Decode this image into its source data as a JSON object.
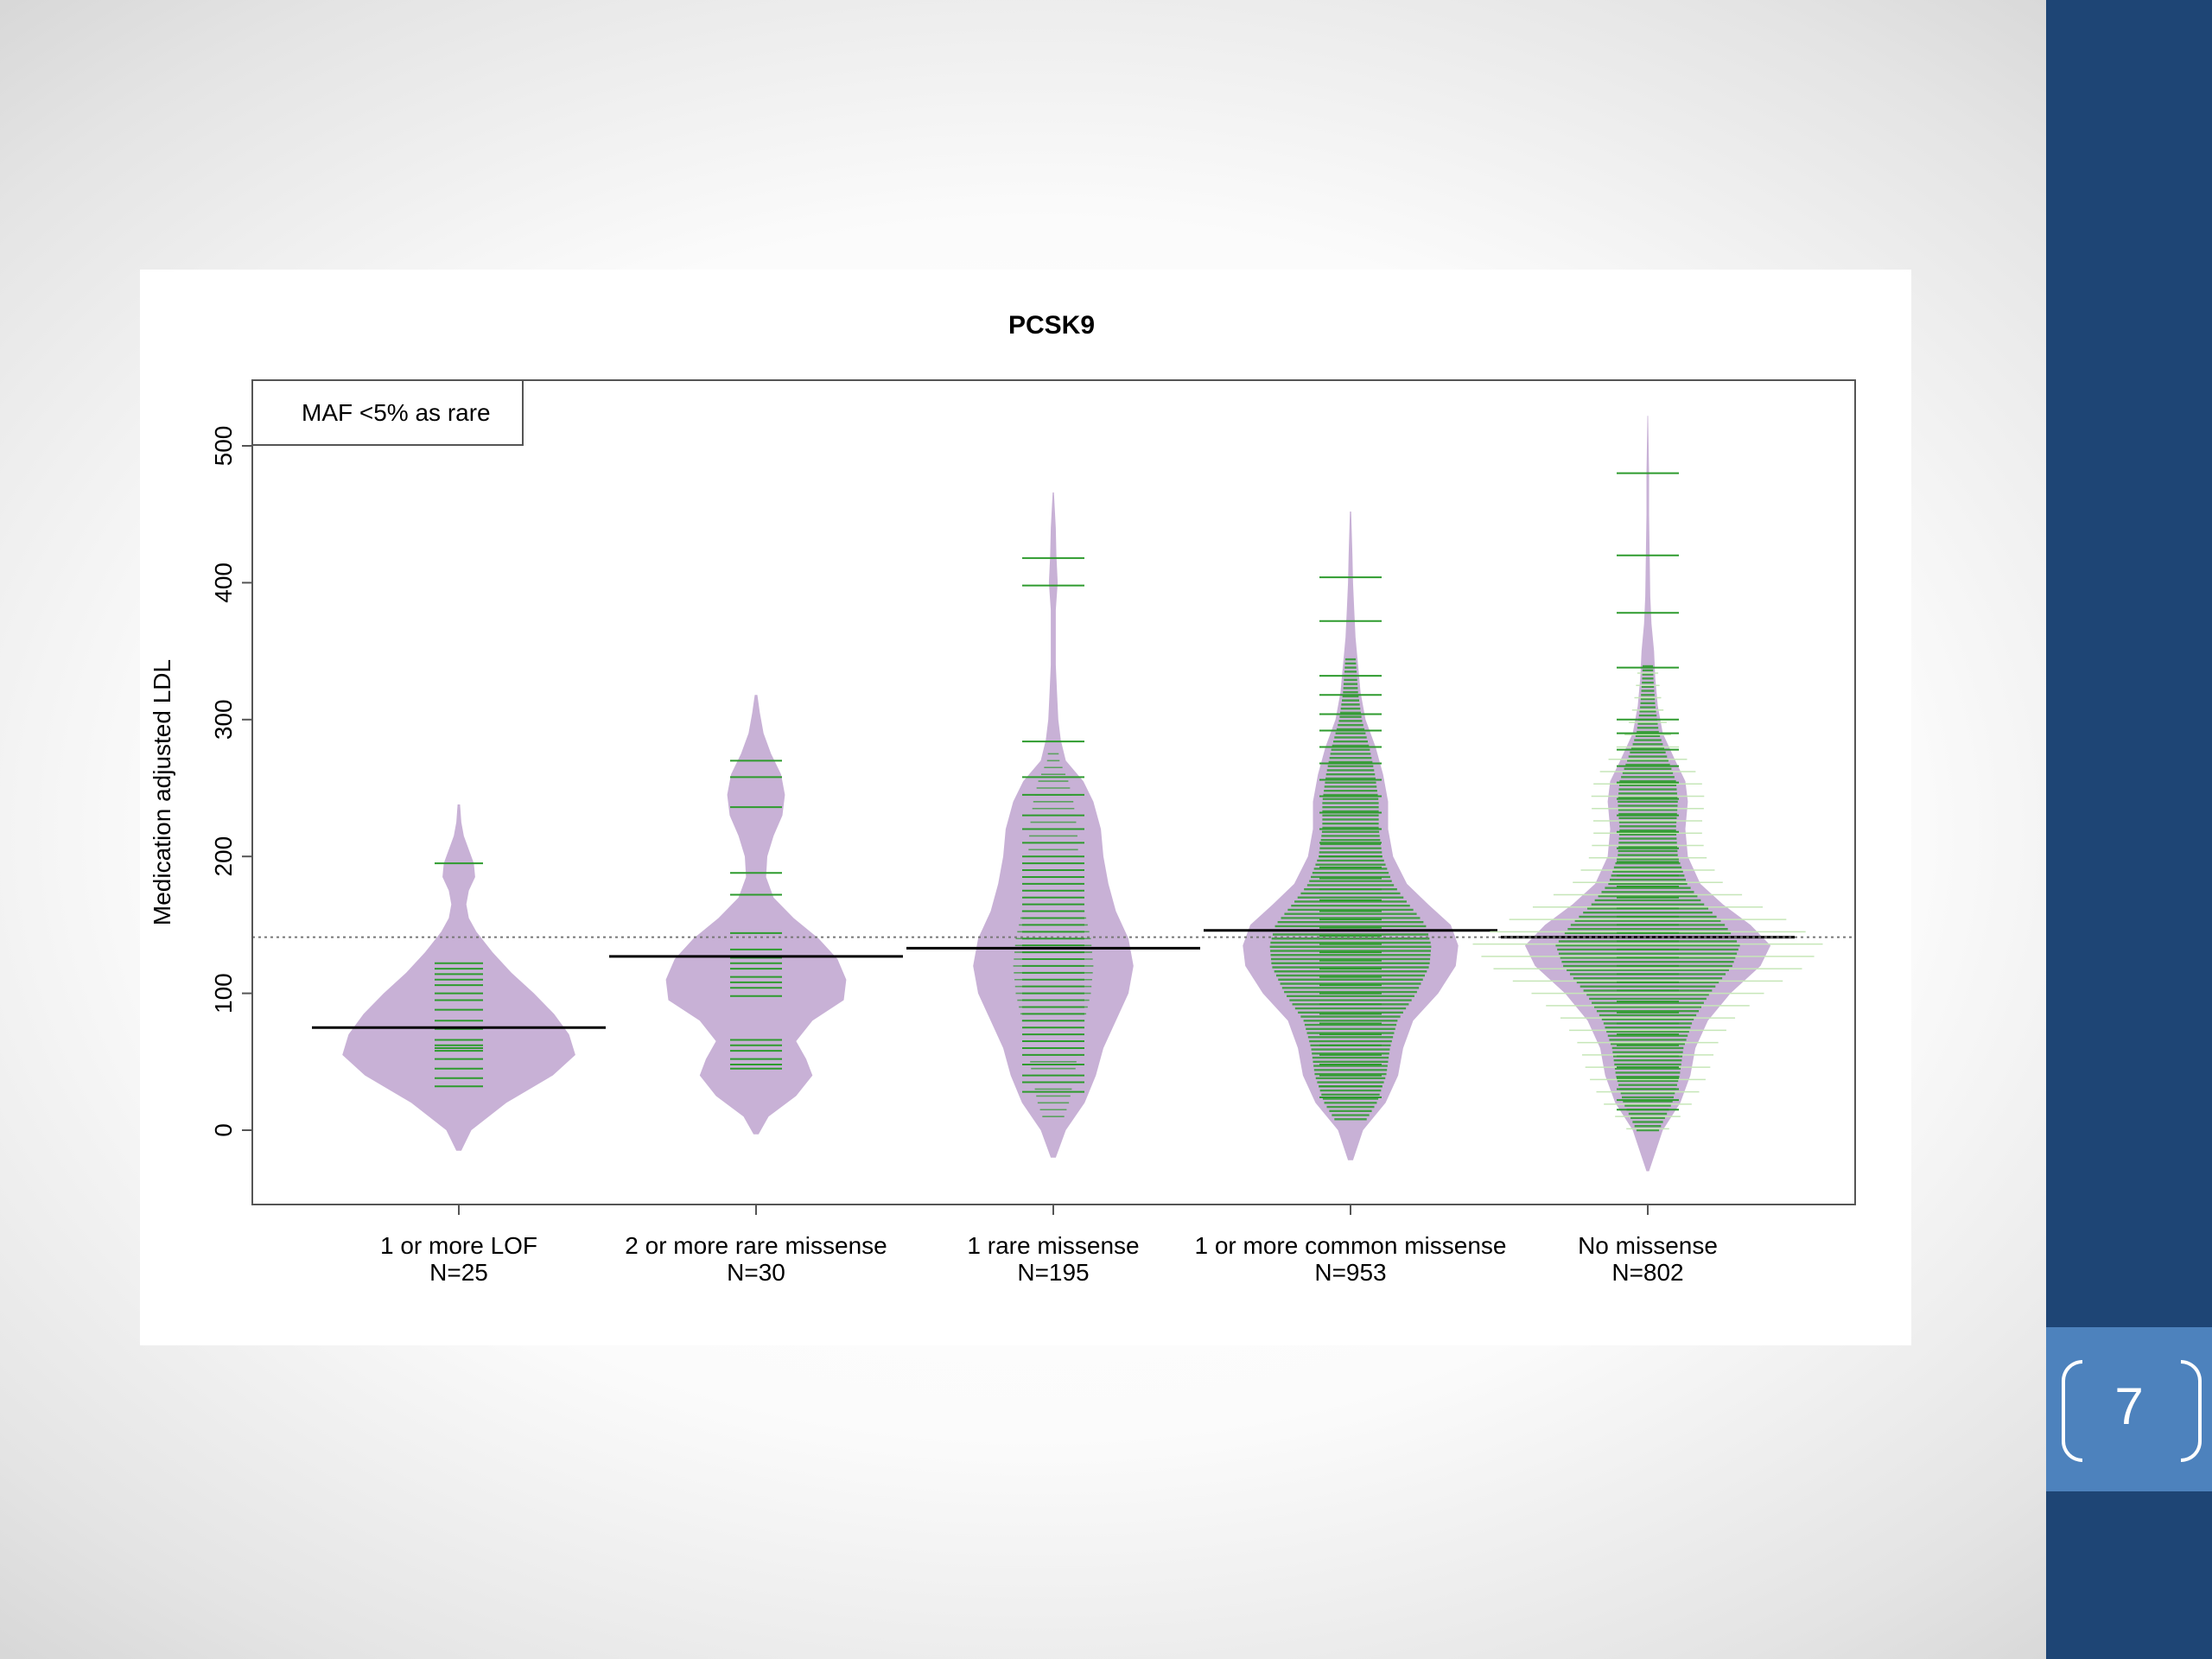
{
  "slide": {
    "number": "7"
  },
  "colors": {
    "violin": "#c8b1d6",
    "beans": "#2e9b2e",
    "beans_light": "#c6e6b8",
    "band": "#1e4575",
    "number_box": "#4d82bd"
  },
  "chart_data": {
    "type": "beanplot",
    "title": "PCSK9",
    "xlabel": "",
    "ylabel": "Medication adjusted LDL",
    "ylim": [
      -52,
      548
    ],
    "yticks": [
      0,
      100,
      200,
      300,
      400,
      500
    ],
    "legend": {
      "text": "MAF <5% as rare",
      "position": "top-left"
    },
    "overall_mean": 141,
    "groups": [
      {
        "label": "1 or more LOF",
        "n_label": "N=25",
        "mean": 75,
        "range": [
          -15,
          238
        ],
        "density": [
          [
            -15,
            0.02
          ],
          [
            0,
            0.1
          ],
          [
            20,
            0.38
          ],
          [
            40,
            0.75
          ],
          [
            55,
            0.93
          ],
          [
            70,
            0.88
          ],
          [
            85,
            0.76
          ],
          [
            100,
            0.6
          ],
          [
            115,
            0.42
          ],
          [
            130,
            0.27
          ],
          [
            145,
            0.14
          ],
          [
            155,
            0.08
          ],
          [
            165,
            0.06
          ],
          [
            175,
            0.08
          ],
          [
            185,
            0.13
          ],
          [
            195,
            0.12
          ],
          [
            205,
            0.08
          ],
          [
            215,
            0.04
          ],
          [
            225,
            0.02
          ],
          [
            238,
            0.01
          ]
        ],
        "points": [
          32,
          38,
          45,
          52,
          58,
          60,
          62,
          66,
          74,
          80,
          88,
          95,
          100,
          106,
          110,
          114,
          118,
          122,
          195
        ]
      },
      {
        "label": "2 or more rare missense",
        "n_label": "N=30",
        "mean": 127,
        "range": [
          -3,
          318
        ],
        "density": [
          [
            -3,
            0.02
          ],
          [
            10,
            0.1
          ],
          [
            25,
            0.32
          ],
          [
            40,
            0.45
          ],
          [
            52,
            0.4
          ],
          [
            65,
            0.32
          ],
          [
            80,
            0.45
          ],
          [
            95,
            0.7
          ],
          [
            110,
            0.72
          ],
          [
            125,
            0.65
          ],
          [
            140,
            0.5
          ],
          [
            155,
            0.3
          ],
          [
            170,
            0.14
          ],
          [
            185,
            0.08
          ],
          [
            200,
            0.09
          ],
          [
            215,
            0.14
          ],
          [
            230,
            0.21
          ],
          [
            245,
            0.23
          ],
          [
            260,
            0.2
          ],
          [
            275,
            0.12
          ],
          [
            290,
            0.06
          ],
          [
            305,
            0.03
          ],
          [
            318,
            0.01
          ]
        ],
        "points": [
          45,
          48,
          52,
          58,
          62,
          66,
          98,
          104,
          108,
          112,
          118,
          122,
          126,
          132,
          144,
          172,
          188,
          236,
          258,
          270
        ]
      },
      {
        "label": "1 rare missense",
        "n_label": "N=195",
        "mean": 133,
        "range": [
          -20,
          466
        ],
        "density": [
          [
            -20,
            0.02
          ],
          [
            0,
            0.1
          ],
          [
            20,
            0.25
          ],
          [
            40,
            0.34
          ],
          [
            60,
            0.4
          ],
          [
            80,
            0.5
          ],
          [
            100,
            0.6
          ],
          [
            120,
            0.64
          ],
          [
            140,
            0.6
          ],
          [
            160,
            0.5
          ],
          [
            180,
            0.44
          ],
          [
            200,
            0.4
          ],
          [
            220,
            0.38
          ],
          [
            240,
            0.32
          ],
          [
            255,
            0.24
          ],
          [
            270,
            0.1
          ],
          [
            285,
            0.06
          ],
          [
            300,
            0.04
          ],
          [
            320,
            0.03
          ],
          [
            340,
            0.02
          ],
          [
            360,
            0.02
          ],
          [
            380,
            0.02
          ],
          [
            400,
            0.035
          ],
          [
            420,
            0.025
          ],
          [
            440,
            0.02
          ],
          [
            466,
            0.005
          ]
        ],
        "points": [
          28,
          35,
          40,
          48,
          55,
          60,
          65,
          70,
          75,
          80,
          85,
          90,
          95,
          100,
          105,
          110,
          115,
          120,
          125,
          130,
          135,
          140,
          145,
          150,
          155,
          160,
          165,
          170,
          175,
          180,
          185,
          190,
          195,
          200,
          210,
          220,
          230,
          245,
          258,
          284,
          398,
          418
        ]
      },
      {
        "label": "1 or more common missense",
        "n_label": "N=953",
        "mean": 146,
        "range": [
          -22,
          452
        ],
        "density": [
          [
            -22,
            0.02
          ],
          [
            0,
            0.1
          ],
          [
            20,
            0.28
          ],
          [
            40,
            0.38
          ],
          [
            60,
            0.42
          ],
          [
            80,
            0.5
          ],
          [
            100,
            0.7
          ],
          [
            120,
            0.84
          ],
          [
            135,
            0.86
          ],
          [
            150,
            0.8
          ],
          [
            165,
            0.62
          ],
          [
            180,
            0.45
          ],
          [
            200,
            0.34
          ],
          [
            220,
            0.3
          ],
          [
            240,
            0.3
          ],
          [
            260,
            0.26
          ],
          [
            280,
            0.2
          ],
          [
            300,
            0.12
          ],
          [
            320,
            0.08
          ],
          [
            340,
            0.06
          ],
          [
            360,
            0.04
          ],
          [
            380,
            0.03
          ],
          [
            400,
            0.02
          ],
          [
            420,
            0.015
          ],
          [
            452,
            0.005
          ]
        ],
        "points": [
          24,
          32,
          40,
          48,
          55,
          62,
          70,
          78,
          85,
          92,
          100,
          106,
          112,
          118,
          124,
          130,
          136,
          142,
          148,
          154,
          160,
          168,
          176,
          184,
          192,
          200,
          210,
          220,
          232,
          244,
          256,
          268,
          280,
          292,
          304,
          318,
          332,
          372,
          404
        ]
      },
      {
        "label": "No missense",
        "n_label": "N=802",
        "mean": 141,
        "range": [
          -30,
          522
        ],
        "density": [
          [
            -30,
            0.01
          ],
          [
            0,
            0.12
          ],
          [
            20,
            0.26
          ],
          [
            40,
            0.34
          ],
          [
            60,
            0.38
          ],
          [
            80,
            0.48
          ],
          [
            100,
            0.66
          ],
          [
            120,
            0.9
          ],
          [
            135,
            0.98
          ],
          [
            150,
            0.82
          ],
          [
            165,
            0.6
          ],
          [
            180,
            0.42
          ],
          [
            200,
            0.32
          ],
          [
            220,
            0.3
          ],
          [
            240,
            0.32
          ],
          [
            255,
            0.3
          ],
          [
            270,
            0.22
          ],
          [
            290,
            0.12
          ],
          [
            310,
            0.08
          ],
          [
            330,
            0.06
          ],
          [
            350,
            0.05
          ],
          [
            370,
            0.03
          ],
          [
            390,
            0.02
          ],
          [
            420,
            0.015
          ],
          [
            450,
            0.01
          ],
          [
            480,
            0.01
          ],
          [
            522,
            0.003
          ]
        ],
        "points": [
          15,
          22,
          30,
          38,
          46,
          54,
          62,
          70,
          78,
          86,
          94,
          102,
          108,
          114,
          120,
          126,
          132,
          138,
          144,
          150,
          156,
          162,
          170,
          178,
          186,
          196,
          206,
          218,
          230,
          242,
          254,
          266,
          278,
          290,
          300,
          338,
          378,
          420,
          480
        ]
      }
    ]
  }
}
